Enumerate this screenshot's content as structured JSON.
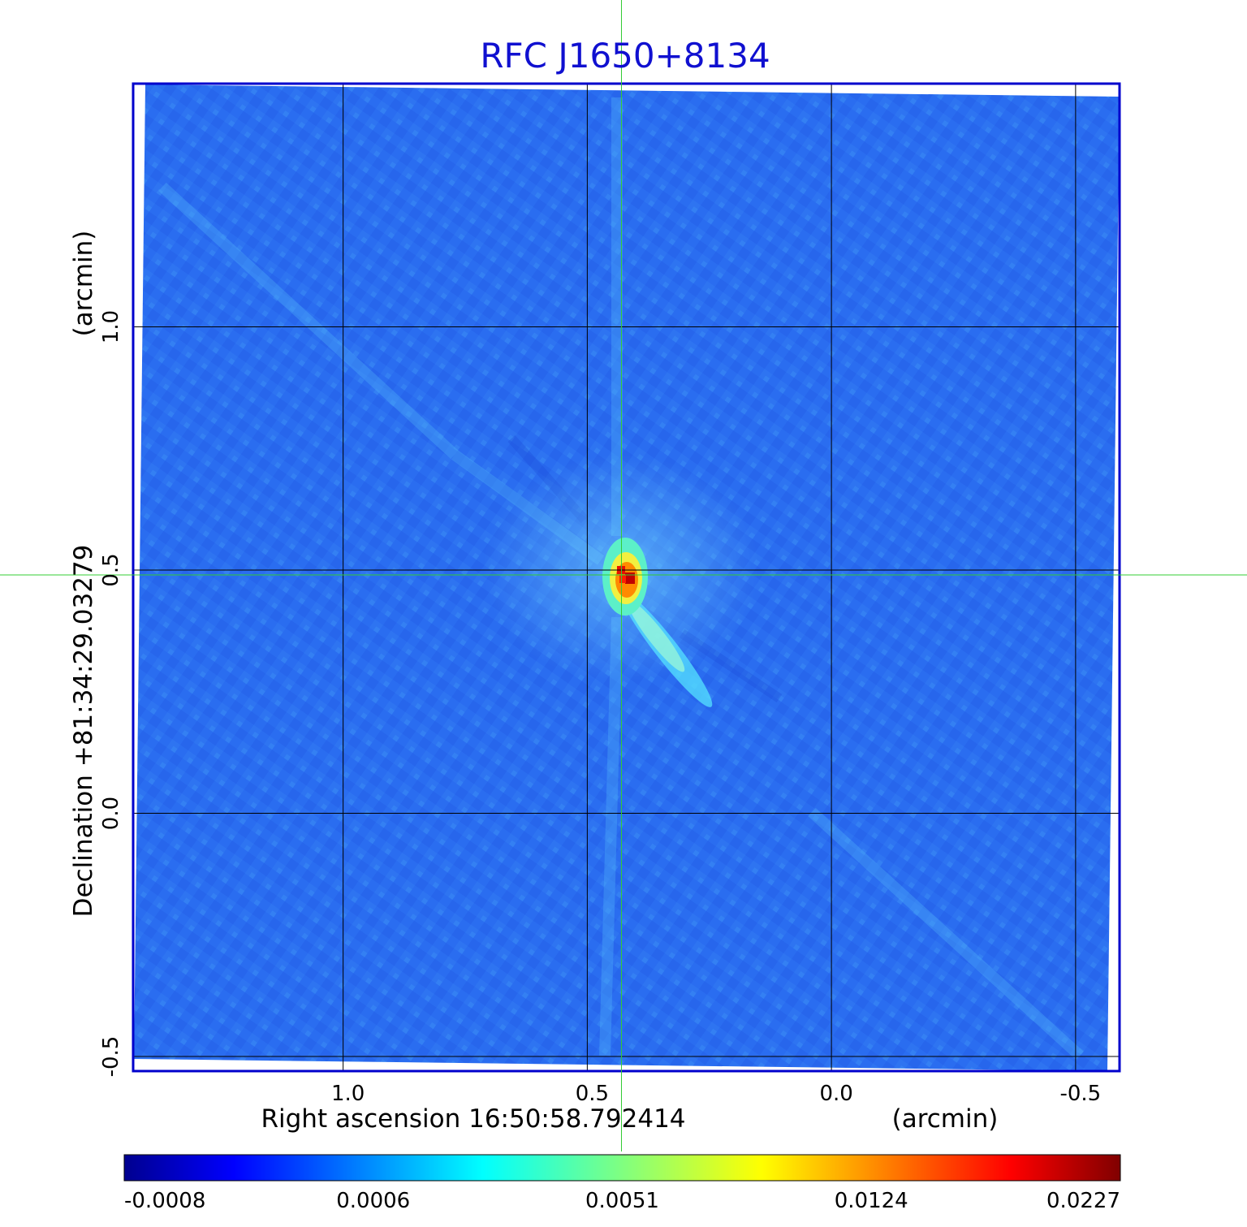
{
  "chart_data": {
    "type": "heatmap",
    "title": "RFC J1650+8134",
    "xlabel": "Right ascension  16:50:58.792414",
    "xunit": "(arcmin)",
    "ylabel": "Declination  +81:34:29.03279",
    "yunit": "(arcmin)",
    "xlim": [
      1.43,
      -0.59
    ],
    "ylim": [
      -0.53,
      1.5
    ],
    "x_ticks": [
      {
        "value": 1.0,
        "label": "1.0"
      },
      {
        "value": 0.5,
        "label": "0.5"
      },
      {
        "value": 0.0,
        "label": "0.0"
      },
      {
        "value": -0.5,
        "label": "-0.5"
      }
    ],
    "y_ticks": [
      {
        "value": 1.0,
        "label": "1.0"
      },
      {
        "value": 0.5,
        "label": "0.5"
      },
      {
        "value": 0.0,
        "label": "0.0"
      },
      {
        "value": -0.5,
        "label": "-0.5"
      }
    ],
    "grid": true,
    "crosshair": {
      "x": 0.43,
      "y": 0.49,
      "color": "#33cc33"
    },
    "source_peak": {
      "x": 0.42,
      "y": 0.48,
      "value": 0.0227
    },
    "jet": {
      "direction_from_peak": "lower-right",
      "extent_arcmin": 0.25
    },
    "colorbar": {
      "colormap": "jet",
      "position": "bottom",
      "tick_labels": [
        "-0.0008",
        "0.0006",
        "0.0051",
        "0.0124",
        "0.0227"
      ],
      "min": -0.0008,
      "max": 0.0227
    },
    "colors": {
      "title": "#1010d0",
      "frame": "#0000cc",
      "grid": "#000000",
      "background_map": "#2a6df0"
    }
  }
}
